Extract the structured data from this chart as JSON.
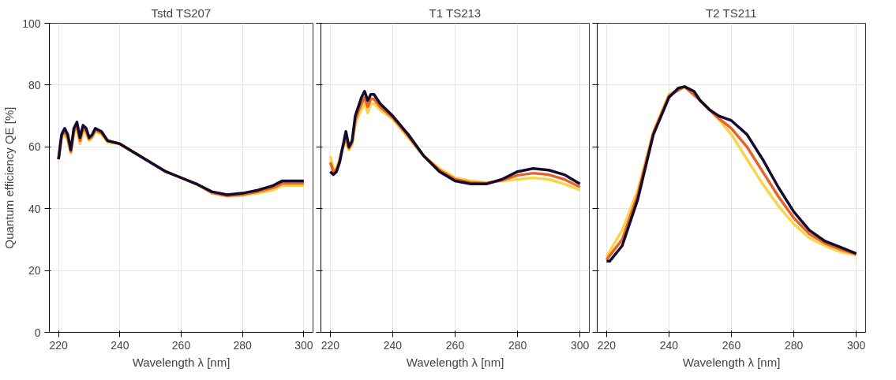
{
  "chart_data": [
    {
      "type": "line",
      "title": "Tstd TS207",
      "xlabel": "Wavelength λ [nm]",
      "ylabel": "Quantum efficiency QE [%]",
      "xlim": [
        217,
        303
      ],
      "ylim": [
        0,
        100
      ],
      "xticks": [
        220,
        240,
        260,
        280,
        300
      ],
      "yticks": [
        0,
        20,
        40,
        60,
        80,
        100
      ],
      "grid": true,
      "line_style": "solid",
      "series": [
        {
          "color": "#fcd44a",
          "x": [
            220,
            221,
            222,
            223,
            224,
            225,
            226,
            227,
            228,
            229,
            230,
            231,
            232,
            234,
            236,
            240,
            245,
            250,
            255,
            260,
            265,
            270,
            275,
            280,
            285,
            290,
            293,
            296,
            300
          ],
          "values": [
            56,
            63,
            64,
            62,
            58,
            64,
            66,
            61,
            65,
            64,
            62,
            63,
            65,
            64,
            61.5,
            61,
            58,
            55,
            52,
            50,
            48,
            45,
            44,
            44.3,
            45,
            46,
            47.5,
            47.5,
            47.5
          ]
        },
        {
          "color": "#e8632a",
          "x": [
            220,
            221,
            222,
            223,
            224,
            225,
            226,
            227,
            228,
            229,
            230,
            231,
            232,
            234,
            236,
            240,
            245,
            250,
            255,
            260,
            265,
            270,
            275,
            280,
            285,
            290,
            293,
            296,
            300
          ],
          "values": [
            56,
            63.5,
            65,
            63,
            58.5,
            65,
            67,
            62,
            66,
            65,
            62.5,
            63.5,
            65.5,
            64.5,
            62,
            61,
            58,
            55,
            52,
            50,
            48,
            45.2,
            44.2,
            44.6,
            45.5,
            46.8,
            48.2,
            48.2,
            48.2
          ]
        },
        {
          "color": "#140b2e",
          "x": [
            220,
            221,
            222,
            223,
            224,
            225,
            226,
            227,
            228,
            229,
            230,
            231,
            232,
            234,
            236,
            240,
            245,
            250,
            255,
            260,
            265,
            270,
            275,
            280,
            285,
            290,
            293,
            296,
            300
          ],
          "values": [
            56,
            64,
            66,
            64,
            59,
            66,
            68,
            63,
            67,
            66,
            63,
            64,
            66,
            65,
            62,
            61,
            58,
            55,
            52,
            50,
            48,
            45.5,
            44.5,
            45,
            46,
            47.5,
            49,
            49,
            49
          ]
        }
      ]
    },
    {
      "type": "line",
      "title": "T1 TS213",
      "xlabel": "Wavelength λ [nm]",
      "xlim": [
        217,
        303
      ],
      "ylim": [
        0,
        100
      ],
      "xticks": [
        220,
        240,
        260,
        280,
        300
      ],
      "yticks": [
        0,
        20,
        40,
        60,
        80,
        100
      ],
      "grid": true,
      "line_style": "solid",
      "tick_labels": "x",
      "series": [
        {
          "color": "#fcd44a",
          "x": [
            220,
            221,
            222,
            223,
            224,
            225,
            226,
            227,
            228,
            229,
            230,
            231,
            232,
            233,
            234,
            236,
            240,
            245,
            250,
            255,
            260,
            265,
            270,
            275,
            280,
            285,
            290,
            295,
            300
          ],
          "values": [
            57,
            53,
            53,
            56,
            60,
            61,
            59,
            61,
            67,
            70,
            72,
            74,
            71,
            74,
            74,
            72,
            69,
            63,
            57,
            53,
            50,
            49,
            48.5,
            49,
            49.5,
            50,
            49.5,
            48,
            46
          ]
        },
        {
          "color": "#e8632a",
          "x": [
            220,
            221,
            222,
            223,
            224,
            225,
            226,
            227,
            228,
            229,
            230,
            231,
            232,
            233,
            234,
            236,
            240,
            245,
            250,
            255,
            260,
            265,
            270,
            275,
            280,
            285,
            290,
            295,
            300
          ],
          "values": [
            55,
            52,
            52.5,
            55.5,
            60,
            63,
            59.5,
            61.5,
            68.5,
            71.5,
            74,
            76,
            73,
            75.5,
            75.5,
            73,
            69.5,
            63.5,
            57,
            52.5,
            49.5,
            48.5,
            48.2,
            49.2,
            50.8,
            51.5,
            51,
            49.5,
            47
          ]
        },
        {
          "color": "#140b2e",
          "x": [
            220,
            221,
            222,
            223,
            224,
            225,
            226,
            227,
            228,
            229,
            230,
            231,
            232,
            233,
            234,
            236,
            240,
            245,
            250,
            255,
            260,
            265,
            270,
            275,
            280,
            285,
            290,
            295,
            300
          ],
          "values": [
            52,
            51,
            52,
            55,
            60,
            65,
            60,
            62,
            70,
            73,
            76,
            78,
            75,
            77,
            77,
            74,
            70,
            64,
            57,
            52,
            49,
            48,
            48,
            49.5,
            52,
            53,
            52.5,
            51,
            48
          ]
        }
      ]
    },
    {
      "type": "line",
      "title": "T2 TS211",
      "xlabel": "Wavelength λ [nm]",
      "xlim": [
        217,
        303
      ],
      "ylim": [
        0,
        100
      ],
      "xticks": [
        220,
        240,
        260,
        280,
        300
      ],
      "yticks": [
        0,
        20,
        40,
        60,
        80,
        100
      ],
      "grid": true,
      "line_style": "solid",
      "tick_labels": "x",
      "series": [
        {
          "color": "#fcd44a",
          "x": [
            220,
            225,
            230,
            235,
            240,
            245,
            250,
            255,
            260,
            265,
            270,
            275,
            280,
            285,
            290,
            295,
            300
          ],
          "values": [
            24.5,
            33,
            46,
            65,
            77,
            79.5,
            75,
            70,
            64,
            56,
            48,
            41,
            35,
            30.5,
            28,
            26,
            25
          ]
        },
        {
          "color": "#e8632a",
          "x": [
            220,
            225,
            230,
            235,
            240,
            245,
            250,
            255,
            260,
            265,
            270,
            275,
            280,
            285,
            290,
            295,
            300
          ],
          "values": [
            23.5,
            30,
            44.5,
            64.5,
            76.5,
            79.5,
            75,
            70,
            66,
            60,
            52,
            44,
            37,
            31.8,
            28.8,
            26.8,
            25.3
          ]
        },
        {
          "color": "#140b2e",
          "x": [
            220,
            221,
            225,
            230,
            235,
            240,
            243,
            245,
            248,
            250,
            253,
            256,
            260,
            265,
            270,
            275,
            280,
            285,
            290,
            295,
            300
          ],
          "values": [
            23,
            23,
            28,
            43,
            64,
            76,
            79,
            79.5,
            78,
            75,
            72,
            70,
            68.5,
            64,
            56,
            47,
            39,
            33,
            29.5,
            27.5,
            25.5
          ]
        }
      ]
    }
  ]
}
